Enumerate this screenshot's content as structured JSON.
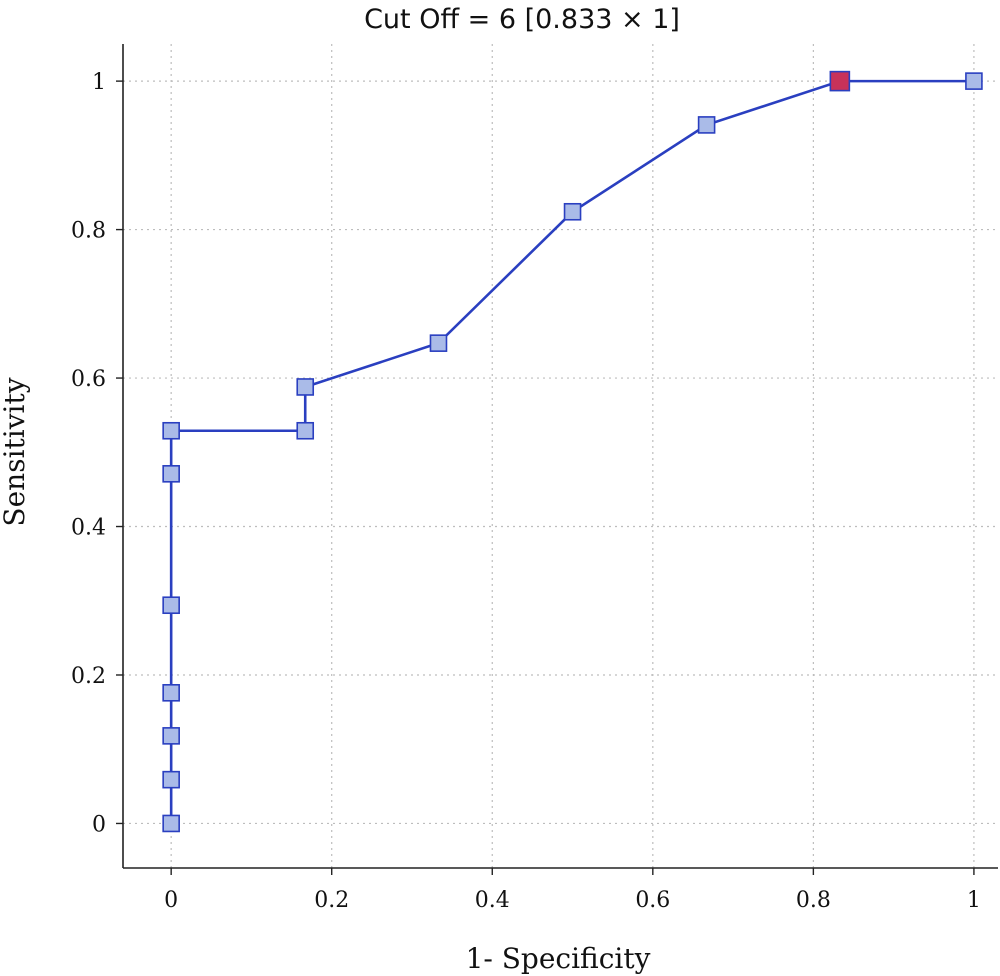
{
  "chart_data": {
    "type": "line",
    "title": "Cut Off = 6 [0.833 × 1]",
    "xlabel": "1- Specificity",
    "ylabel": "Sensitivity",
    "xlim": [
      -0.06,
      1.03
    ],
    "ylim": [
      -0.06,
      1.05
    ],
    "xticks": [
      0,
      0.2,
      0.4,
      0.6,
      0.8,
      1
    ],
    "yticks": [
      0,
      0.2,
      0.4,
      0.6,
      0.8,
      1
    ],
    "xtick_labels": [
      "0",
      "0.2",
      "0.4",
      "0.6",
      "0.8",
      "1"
    ],
    "ytick_labels": [
      "0",
      "0.2",
      "0.4",
      "0.6",
      "0.8",
      "1"
    ],
    "grid": true,
    "legend": "none",
    "colors": {
      "line": "#2a3fc0",
      "marker_fill": "#aabbe8",
      "marker_stroke": "#2a3fc0",
      "highlight_fill": "#c8325a"
    },
    "series": [
      {
        "x": [
          0,
          0,
          0,
          0,
          0,
          0,
          0,
          0.167,
          0.167,
          0.333,
          0.5,
          0.667,
          0.833,
          1
        ],
        "y": [
          0,
          0.059,
          0.118,
          0.176,
          0.294,
          0.471,
          0.529,
          0.529,
          0.588,
          0.647,
          0.824,
          0.941,
          1,
          1
        ]
      }
    ],
    "highlight": {
      "x": 0.833,
      "y": 1
    }
  }
}
